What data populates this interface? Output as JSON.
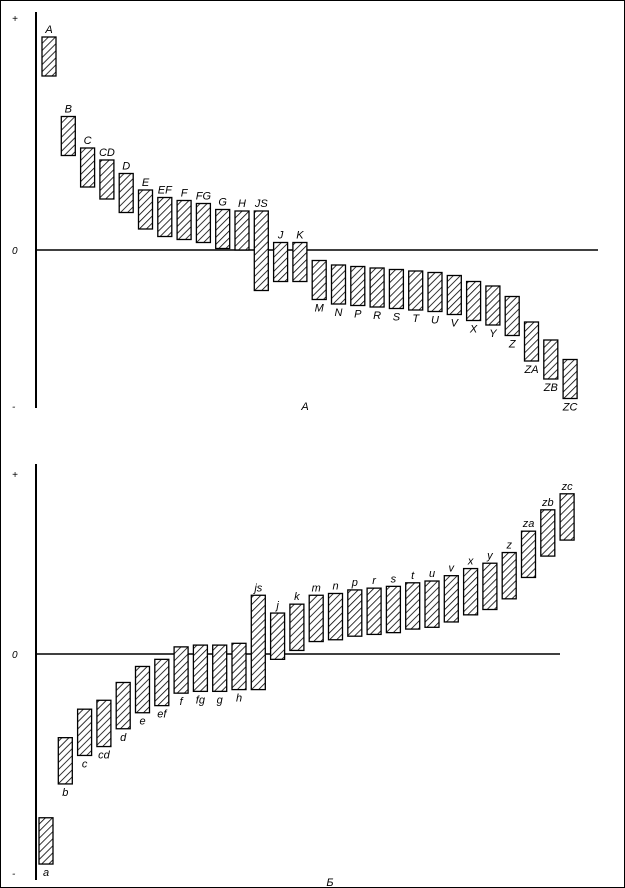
{
  "chart_data": [
    {
      "type": "bar",
      "caption": "A",
      "y_ticks": {
        "plus": "+",
        "zero": "0",
        "minus": "-"
      },
      "bars": [
        {
          "label": "A",
          "low": 1.16,
          "high": 1.42
        },
        {
          "label": "B",
          "low": 0.63,
          "high": 0.89
        },
        {
          "label": "C",
          "low": 0.42,
          "high": 0.68
        },
        {
          "label": "CD",
          "low": 0.34,
          "high": 0.6
        },
        {
          "label": "D",
          "low": 0.25,
          "high": 0.51
        },
        {
          "label": "E",
          "low": 0.14,
          "high": 0.4
        },
        {
          "label": "EF",
          "low": 0.09,
          "high": 0.35
        },
        {
          "label": "F",
          "low": 0.07,
          "high": 0.33
        },
        {
          "label": "FG",
          "low": 0.05,
          "high": 0.31
        },
        {
          "label": "G",
          "low": 0.01,
          "high": 0.27
        },
        {
          "label": "H",
          "low": 0.0,
          "high": 0.26
        },
        {
          "label": "JS",
          "low": -0.27,
          "high": 0.26
        },
        {
          "label": "J",
          "low": -0.21,
          "high": 0.05
        },
        {
          "label": "K",
          "low": -0.21,
          "high": 0.05
        },
        {
          "label": "M",
          "low": -0.33,
          "high": -0.07
        },
        {
          "label": "N",
          "low": -0.36,
          "high": -0.1
        },
        {
          "label": "P",
          "low": -0.37,
          "high": -0.11
        },
        {
          "label": "R",
          "low": -0.38,
          "high": -0.12
        },
        {
          "label": "S",
          "low": -0.39,
          "high": -0.13
        },
        {
          "label": "T",
          "low": -0.4,
          "high": -0.14
        },
        {
          "label": "U",
          "low": -0.41,
          "high": -0.15
        },
        {
          "label": "V",
          "low": -0.43,
          "high": -0.17
        },
        {
          "label": "X",
          "low": -0.47,
          "high": -0.21
        },
        {
          "label": "Y",
          "low": -0.5,
          "high": -0.24
        },
        {
          "label": "Z",
          "low": -0.57,
          "high": -0.31
        },
        {
          "label": "ZA",
          "low": -0.74,
          "high": -0.48
        },
        {
          "label": "ZB",
          "low": -0.86,
          "high": -0.6
        },
        {
          "label": "ZC",
          "low": -0.99,
          "high": -0.73
        }
      ]
    },
    {
      "type": "bar",
      "caption": "Б",
      "y_ticks": {
        "plus": "+",
        "zero": "0",
        "minus": "-"
      },
      "bars": [
        {
          "label": "a",
          "low": -1.18,
          "high": -0.92
        },
        {
          "label": "b",
          "low": -0.73,
          "high": -0.47
        },
        {
          "label": "c",
          "low": -0.57,
          "high": -0.31
        },
        {
          "label": "cd",
          "low": -0.52,
          "high": -0.26
        },
        {
          "label": "d",
          "low": -0.42,
          "high": -0.16
        },
        {
          "label": "e",
          "low": -0.33,
          "high": -0.07
        },
        {
          "label": "ef",
          "low": -0.29,
          "high": -0.03
        },
        {
          "label": "f",
          "low": -0.22,
          "high": 0.04
        },
        {
          "label": "fg",
          "low": -0.21,
          "high": 0.05
        },
        {
          "label": "g",
          "low": -0.21,
          "high": 0.05
        },
        {
          "label": "h",
          "low": -0.2,
          "high": 0.06
        },
        {
          "label": "js",
          "low": -0.2,
          "high": 0.33
        },
        {
          "label": "j",
          "low": -0.03,
          "high": 0.23
        },
        {
          "label": "k",
          "low": 0.02,
          "high": 0.28
        },
        {
          "label": "m",
          "low": 0.07,
          "high": 0.33
        },
        {
          "label": "n",
          "low": 0.08,
          "high": 0.34
        },
        {
          "label": "p",
          "low": 0.1,
          "high": 0.36
        },
        {
          "label": "r",
          "low": 0.11,
          "high": 0.37
        },
        {
          "label": "s",
          "low": 0.12,
          "high": 0.38
        },
        {
          "label": "t",
          "low": 0.14,
          "high": 0.4
        },
        {
          "label": "u",
          "low": 0.15,
          "high": 0.41
        },
        {
          "label": "v",
          "low": 0.18,
          "high": 0.44
        },
        {
          "label": "x",
          "low": 0.22,
          "high": 0.48
        },
        {
          "label": "y",
          "low": 0.25,
          "high": 0.51
        },
        {
          "label": "z",
          "low": 0.31,
          "high": 0.57
        },
        {
          "label": "za",
          "low": 0.43,
          "high": 0.69
        },
        {
          "label": "zb",
          "low": 0.55,
          "high": 0.81
        },
        {
          "label": "zc",
          "low": 0.64,
          "high": 0.9
        }
      ]
    }
  ]
}
